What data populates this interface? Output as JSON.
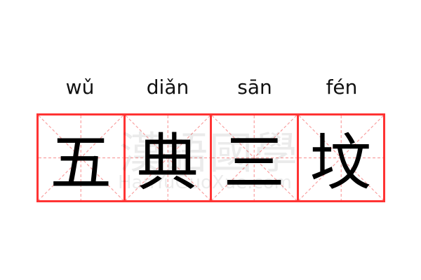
{
  "words": [
    {
      "pinyin": "wǔ",
      "hanzi": "五"
    },
    {
      "pinyin": "diǎn",
      "hanzi": "典"
    },
    {
      "pinyin": "sān",
      "hanzi": "三"
    },
    {
      "pinyin": "fén",
      "hanzi": "坟"
    }
  ],
  "watermark": {
    "text": "漢語國學",
    "url": "HanYuGuoXue.com"
  },
  "colors": {
    "grid_border": "#ff3333",
    "guide_lines": "#f9a0a0"
  }
}
